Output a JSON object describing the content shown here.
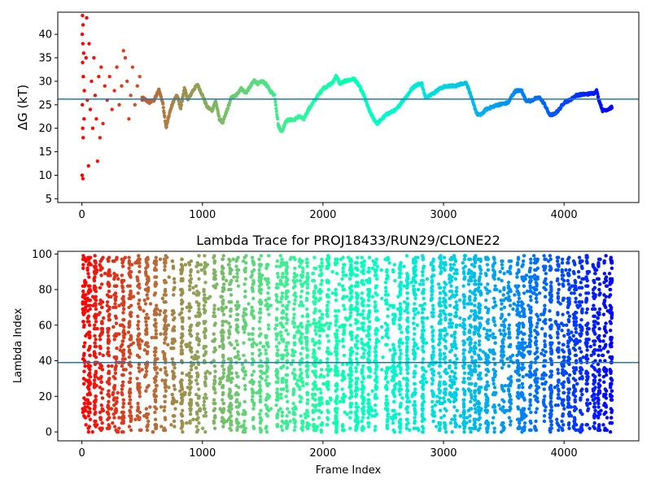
{
  "chart_data": [
    {
      "type": "scatter",
      "xlabel": "",
      "ylabel": "ΔG (kT)",
      "xlim": [
        -200,
        4620
      ],
      "ylim": [
        4.2,
        44.7
      ],
      "xticks": [
        0,
        1000,
        2000,
        3000,
        4000
      ],
      "yticks": [
        5,
        10,
        15,
        20,
        25,
        30,
        35,
        40
      ],
      "hline": 26.2,
      "hline_color": "#1f77b4",
      "colormap": "rainbow_reversed",
      "early_points": [
        {
          "x": 5,
          "y": 44
        },
        {
          "x": 10,
          "y": 42
        },
        {
          "x": 3,
          "y": 40
        },
        {
          "x": 8,
          "y": 38
        },
        {
          "x": 15,
          "y": 36
        },
        {
          "x": 6,
          "y": 34
        },
        {
          "x": 12,
          "y": 31
        },
        {
          "x": 20,
          "y": 28
        },
        {
          "x": 4,
          "y": 25
        },
        {
          "x": 18,
          "y": 22
        },
        {
          "x": 7,
          "y": 20
        },
        {
          "x": 11,
          "y": 18
        },
        {
          "x": 2,
          "y": 10
        },
        {
          "x": 9,
          "y": 9.3
        },
        {
          "x": 40,
          "y": 43.5
        },
        {
          "x": 35,
          "y": 35
        },
        {
          "x": 45,
          "y": 26
        },
        {
          "x": 55,
          "y": 12
        },
        {
          "x": 60,
          "y": 38
        },
        {
          "x": 70,
          "y": 24
        },
        {
          "x": 80,
          "y": 30
        },
        {
          "x": 90,
          "y": 20
        },
        {
          "x": 100,
          "y": 35
        },
        {
          "x": 110,
          "y": 27
        },
        {
          "x": 120,
          "y": 22
        },
        {
          "x": 130,
          "y": 13
        },
        {
          "x": 140,
          "y": 31
        },
        {
          "x": 150,
          "y": 18
        },
        {
          "x": 160,
          "y": 33
        },
        {
          "x": 175,
          "y": 21
        },
        {
          "x": 190,
          "y": 29
        },
        {
          "x": 210,
          "y": 26
        },
        {
          "x": 230,
          "y": 31
        },
        {
          "x": 250,
          "y": 24
        },
        {
          "x": 270,
          "y": 28
        },
        {
          "x": 290,
          "y": 33
        },
        {
          "x": 310,
          "y": 25
        },
        {
          "x": 330,
          "y": 29
        },
        {
          "x": 345,
          "y": 36.5
        },
        {
          "x": 360,
          "y": 35
        },
        {
          "x": 375,
          "y": 30
        },
        {
          "x": 390,
          "y": 22
        },
        {
          "x": 405,
          "y": 27
        },
        {
          "x": 420,
          "y": 33
        },
        {
          "x": 440,
          "y": 25
        },
        {
          "x": 460,
          "y": 29
        },
        {
          "x": 480,
          "y": 31
        },
        {
          "x": 500,
          "y": 26
        }
      ],
      "trace": [
        [
          500,
          26.5
        ],
        [
          560,
          25.5
        ],
        [
          600,
          26
        ],
        [
          640,
          28.2
        ],
        [
          670,
          25.5
        ],
        [
          700,
          20.2
        ],
        [
          730,
          23.5
        ],
        [
          760,
          25.8
        ],
        [
          790,
          27
        ],
        [
          820,
          24.2
        ],
        [
          850,
          28.5
        ],
        [
          880,
          26
        ],
        [
          920,
          28
        ],
        [
          960,
          29.3
        ],
        [
          1000,
          27
        ],
        [
          1040,
          24.5
        ],
        [
          1080,
          23.8
        ],
        [
          1110,
          25.8
        ],
        [
          1140,
          22
        ],
        [
          1170,
          21.2
        ],
        [
          1200,
          23.5
        ],
        [
          1240,
          26.5
        ],
        [
          1280,
          27
        ],
        [
          1320,
          28.5
        ],
        [
          1360,
          27.5
        ],
        [
          1400,
          29
        ],
        [
          1430,
          30.2
        ],
        [
          1460,
          29.5
        ],
        [
          1500,
          30
        ],
        [
          1530,
          29.3
        ],
        [
          1560,
          28
        ],
        [
          1600,
          27
        ],
        [
          1630,
          20.5
        ],
        [
          1660,
          19.2
        ],
        [
          1690,
          21.5
        ],
        [
          1720,
          21.8
        ],
        [
          1760,
          21.8
        ],
        [
          1800,
          22.5
        ],
        [
          1840,
          22
        ],
        [
          1880,
          24
        ],
        [
          1920,
          25.5
        ],
        [
          1960,
          27
        ],
        [
          2000,
          28.5
        ],
        [
          2040,
          29
        ],
        [
          2080,
          29.7
        ],
        [
          2110,
          31.2
        ],
        [
          2140,
          29.5
        ],
        [
          2180,
          30
        ],
        [
          2220,
          30.3
        ],
        [
          2260,
          30.5
        ],
        [
          2300,
          29
        ],
        [
          2340,
          27
        ],
        [
          2380,
          24
        ],
        [
          2420,
          22
        ],
        [
          2450,
          21
        ],
        [
          2490,
          22
        ],
        [
          2530,
          23
        ],
        [
          2570,
          23.5
        ],
        [
          2610,
          24
        ],
        [
          2650,
          25.5
        ],
        [
          2700,
          27
        ],
        [
          2740,
          28.5
        ],
        [
          2780,
          29.3
        ],
        [
          2820,
          29.5
        ],
        [
          2850,
          26.5
        ],
        [
          2880,
          27
        ],
        [
          2920,
          27.5
        ],
        [
          2960,
          28.3
        ],
        [
          3000,
          28.8
        ],
        [
          3050,
          29
        ],
        [
          3100,
          29
        ],
        [
          3150,
          29.5
        ],
        [
          3190,
          29.7
        ],
        [
          3220,
          27.5
        ],
        [
          3250,
          25
        ],
        [
          3280,
          23
        ],
        [
          3310,
          22.8
        ],
        [
          3350,
          24
        ],
        [
          3400,
          24.5
        ],
        [
          3450,
          25
        ],
        [
          3500,
          25.2
        ],
        [
          3540,
          25.5
        ],
        [
          3570,
          27
        ],
        [
          3600,
          28
        ],
        [
          3650,
          28
        ],
        [
          3680,
          26
        ],
        [
          3720,
          25.8
        ],
        [
          3760,
          26.3
        ],
        [
          3800,
          26.5
        ],
        [
          3840,
          25
        ],
        [
          3880,
          22.8
        ],
        [
          3920,
          23
        ],
        [
          3960,
          24
        ],
        [
          4000,
          25.5
        ],
        [
          4050,
          26
        ],
        [
          4100,
          27
        ],
        [
          4150,
          27.2
        ],
        [
          4200,
          27.3
        ],
        [
          4250,
          27.5
        ],
        [
          4270,
          28
        ],
        [
          4290,
          26
        ],
        [
          4320,
          23.8
        ],
        [
          4360,
          24
        ],
        [
          4400,
          24.5
        ]
      ]
    },
    {
      "type": "scatter",
      "title": "Lambda Trace for PROJ18433/RUN29/CLONE22",
      "xlabel": "Frame Index",
      "ylabel": "Lambda Index",
      "xlim": [
        -200,
        4620
      ],
      "ylim": [
        -5,
        101.5
      ],
      "xticks": [
        0,
        1000,
        2000,
        3000,
        4000
      ],
      "yticks": [
        0,
        20,
        40,
        60,
        80,
        100
      ],
      "hline": 39,
      "hline_color": "#1f77b4",
      "colormap": "rainbow_reversed",
      "x_max": 4400,
      "lambda_min": 0,
      "lambda_max": 99,
      "band_centers": [
        20,
        60,
        110,
        160,
        220,
        280,
        340,
        400,
        470,
        540,
        610,
        690,
        760,
        830,
        900,
        960,
        1020,
        1100,
        1170,
        1230,
        1290,
        1350,
        1420,
        1480,
        1540,
        1620,
        1660,
        1700,
        1760,
        1820,
        1870,
        1930,
        1980,
        2040,
        2110,
        2170,
        2230,
        2280,
        2330,
        2380,
        2440,
        2530,
        2590,
        2640,
        2700,
        2760,
        2830,
        2910,
        2970,
        3010,
        3060,
        3100,
        3170,
        3220,
        3260,
        3300,
        3360,
        3420,
        3490,
        3550,
        3620,
        3660,
        3720,
        3770,
        3840,
        3890,
        3950,
        3990,
        4040,
        4090,
        4140,
        4190,
        4250,
        4290,
        4340,
        4390
      ]
    }
  ]
}
